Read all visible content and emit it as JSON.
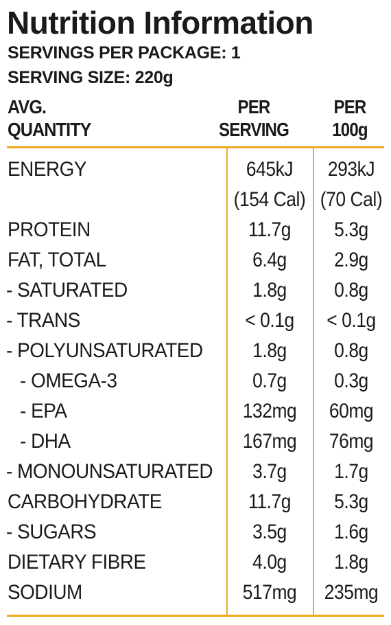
{
  "title": "Nutrition Information",
  "servings_per_package": "SERVINGS PER PACKAGE: 1",
  "serving_size": "SERVING SIZE: 220g",
  "header": {
    "col0_line1": "AVG.",
    "col0_line2": "QUANTITY",
    "col1_line1": "PER",
    "col1_line2": "SERVING",
    "col2_line1": "PER",
    "col2_line2": "100g"
  },
  "rows": [
    {
      "label": "ENERGY",
      "per_serving": "645kJ",
      "per_serving_2": "(154 Cal)",
      "per_100g": "293kJ",
      "per_100g_2": "(70 Cal)"
    },
    {
      "label": "PROTEIN",
      "per_serving": "11.7g",
      "per_100g": "5.3g"
    },
    {
      "label": "FAT, TOTAL",
      "per_serving": "6.4g",
      "per_100g": "2.9g"
    },
    {
      "label": "- SATURATED",
      "per_serving": "1.8g",
      "per_100g": "0.8g"
    },
    {
      "label": "- TRANS",
      "per_serving": "< 0.1g",
      "per_100g": "< 0.1g"
    },
    {
      "label": "- POLYUNSATURATED",
      "per_serving": "1.8g",
      "per_100g": "0.8g"
    },
    {
      "label": "- OMEGA-3",
      "per_serving": "0.7g",
      "per_100g": "0.3g"
    },
    {
      "label": "- EPA",
      "per_serving": "132mg",
      "per_100g": "60mg"
    },
    {
      "label": "- DHA",
      "per_serving": "167mg",
      "per_100g": "76mg"
    },
    {
      "label": "- MONOUNSATURATED",
      "per_serving": "3.7g",
      "per_100g": "1.7g"
    },
    {
      "label": "CARBOHYDRATE",
      "per_serving": "11.7g",
      "per_100g": "5.3g"
    },
    {
      "label": "- SUGARS",
      "per_serving": "3.5g",
      "per_100g": "1.6g"
    },
    {
      "label": "DIETARY FIBRE",
      "per_serving": "4.0g",
      "per_100g": "1.8g"
    },
    {
      "label": "SODIUM",
      "per_serving": "517mg",
      "per_100g": "235mg"
    }
  ],
  "colors": {
    "rule": "#f0a81c",
    "text": "#1a1a1a"
  }
}
